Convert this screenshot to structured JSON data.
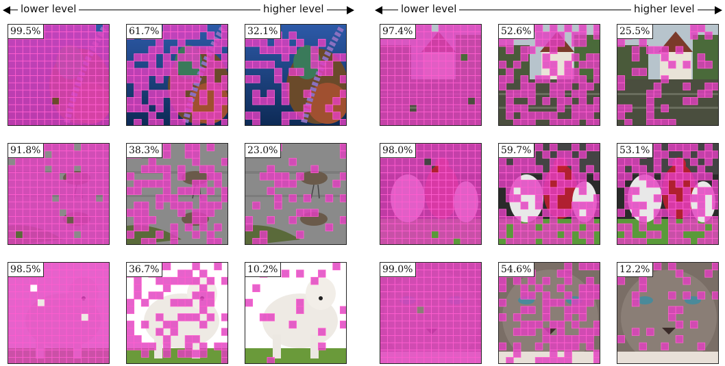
{
  "header": {
    "left": {
      "low": "lower level",
      "high": "higher level"
    },
    "right": {
      "low": "lower level",
      "high": "higher level"
    }
  },
  "colors": {
    "mask": "#e040c0",
    "grid": "#ff60d0"
  },
  "groups": [
    {
      "rows": [
        {
          "scene": "coral reef",
          "percents": [
            "99.5%",
            "61.7%",
            "32.1%"
          ]
        },
        {
          "scene": "wading birds",
          "percents": [
            "91.8%",
            "38.3%",
            "23.0%"
          ]
        },
        {
          "scene": "white dog",
          "percents": [
            "98.5%",
            "36.7%",
            "10.2%"
          ]
        }
      ]
    },
    {
      "rows": [
        {
          "scene": "house by water",
          "percents": [
            "97.4%",
            "52.6%",
            "25.5%"
          ]
        },
        {
          "scene": "football players",
          "percents": [
            "98.0%",
            "59.7%",
            "53.1%"
          ]
        },
        {
          "scene": "cat face",
          "percents": [
            "99.0%",
            "54.6%",
            "12.2%"
          ]
        }
      ]
    }
  ]
}
